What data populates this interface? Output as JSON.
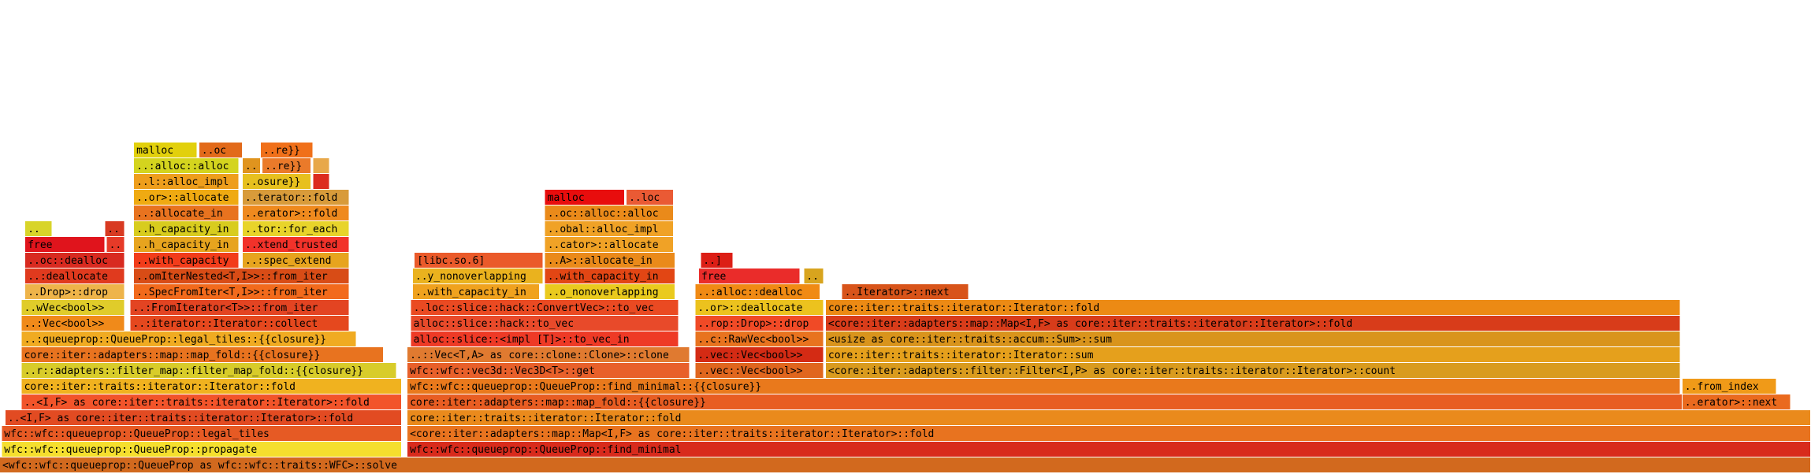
{
  "colors": {
    "background": "#ffffff",
    "text": "#000000"
  },
  "chart_data": {
    "type": "flamegraph",
    "x_unit": "fraction of total samples (0–1)",
    "frames": [
      {
        "label": "<wfc::wfc::queueprop::QueueProp as wfc::wfc::traits::WFC>::solve",
        "depth": 0,
        "start": 0.0,
        "width": 1.0,
        "color": "#d2691e"
      },
      {
        "label": "wfc::wfc::queueprop::QueueProp::propagate",
        "depth": 1,
        "start": 0.001,
        "width": 0.221,
        "color": "#f5df2e"
      },
      {
        "label": "wfc::wfc::queueprop::QueueProp::find_minimal",
        "depth": 1,
        "start": 0.225,
        "width": 0.775,
        "color": "#d82b1c"
      },
      {
        "label": "wfc::wfc::queueprop::QueueProp::legal_tiles",
        "depth": 2,
        "start": 0.001,
        "width": 0.221,
        "color": "#e65a24"
      },
      {
        "label": "<core::iter::adapters::map::Map<I,F> as core::iter::traits::iterator::Iterator>::fold",
        "depth": 2,
        "start": 0.225,
        "width": 0.775,
        "color": "#e8731f"
      },
      {
        "label": "..<I,F> as core::iter::traits::iterator::Iterator>::fold",
        "depth": 3,
        "start": 0.003,
        "width": 0.219,
        "color": "#e24b22"
      },
      {
        "label": "core::iter::traits::iterator::Iterator::fold",
        "depth": 3,
        "start": 0.225,
        "width": 0.775,
        "color": "#ea8a1c"
      },
      {
        "label": "..<I,F> as core::iter::traits::iterator::Iterator>::fold",
        "depth": 4,
        "start": 0.012,
        "width": 0.21,
        "color": "#f2542a"
      },
      {
        "label": "core::iter::adapters::map::map_fold::{{closure}}",
        "depth": 4,
        "start": 0.225,
        "width": 0.704,
        "color": "#e85d22"
      },
      {
        "label": "..erator>::next",
        "depth": 4,
        "start": 0.929,
        "width": 0.06,
        "color": "#ea6a1e"
      },
      {
        "label": "core::iter::traits::iterator::Iterator::fold",
        "depth": 5,
        "start": 0.012,
        "width": 0.21,
        "color": "#f0b21f"
      },
      {
        "label": "wfc::wfc::queueprop::QueueProp::find_minimal::{{closure}}",
        "depth": 5,
        "start": 0.225,
        "width": 0.703,
        "color": "#e9791c"
      },
      {
        "label": "..from_index",
        "depth": 5,
        "start": 0.929,
        "width": 0.052,
        "color": "#f09a18"
      },
      {
        "label": "..r::adapters::filter_map::filter_map_fold::{{closure}}",
        "depth": 6,
        "start": 0.012,
        "width": 0.207,
        "color": "#d8cc2a"
      },
      {
        "label": "wfc::wfc::vec3d::Vec3D<T>::get",
        "depth": 6,
        "start": 0.225,
        "width": 0.156,
        "color": "#e8602a"
      },
      {
        "label": "..vec::Vec<bool>>",
        "depth": 6,
        "start": 0.384,
        "width": 0.071,
        "color": "#e0661e"
      },
      {
        "label": "<core::iter::adapters::filter::Filter<I,P> as core::iter::traits::iterator::Iterator>::count",
        "depth": 6,
        "start": 0.456,
        "width": 0.472,
        "color": "#d99b1e"
      },
      {
        "label": "core::iter::adapters::map::map_fold::{{closure}}",
        "depth": 7,
        "start": 0.012,
        "width": 0.2,
        "color": "#e8731f"
      },
      {
        "label": "..::Vec<T,A> as core::clone::Clone>::clone",
        "depth": 7,
        "start": 0.225,
        "width": 0.156,
        "color": "#e07a30"
      },
      {
        "label": "..vec::Vec<bool>>",
        "depth": 7,
        "start": 0.384,
        "width": 0.071,
        "color": "#d42b14"
      },
      {
        "label": "core::iter::traits::iterator::Iterator::sum",
        "depth": 7,
        "start": 0.456,
        "width": 0.472,
        "color": "#e5a01c"
      },
      {
        "label": "..:queueprop::QueueProp::legal_tiles::{{closure}}",
        "depth": 8,
        "start": 0.012,
        "width": 0.185,
        "color": "#f0ab22"
      },
      {
        "label": "alloc::slice::<impl [T]>::to_vec_in",
        "depth": 8,
        "start": 0.227,
        "width": 0.148,
        "color": "#ee3a26"
      },
      {
        "label": "..c::RawVec<bool>>",
        "depth": 8,
        "start": 0.384,
        "width": 0.071,
        "color": "#e8731f"
      },
      {
        "label": "<usize as core::iter::traits::accum::Sum>::sum",
        "depth": 8,
        "start": 0.456,
        "width": 0.472,
        "color": "#d9941c"
      },
      {
        "label": "..:Vec<bool>>",
        "depth": 9,
        "start": 0.012,
        "width": 0.057,
        "color": "#f08a1a"
      },
      {
        "label": "..:iterator::Iterator::collect",
        "depth": 9,
        "start": 0.072,
        "width": 0.121,
        "color": "#e5481e"
      },
      {
        "label": "alloc::slice::hack::to_vec",
        "depth": 9,
        "start": 0.227,
        "width": 0.148,
        "color": "#e84a2a"
      },
      {
        "label": "..rop::Drop>::drop",
        "depth": 9,
        "start": 0.384,
        "width": 0.071,
        "color": "#f04a26"
      },
      {
        "label": "<core::iter::adapters::map::Map<I,F> as core::iter::traits::iterator::Iterator>::fold",
        "depth": 9,
        "start": 0.456,
        "width": 0.472,
        "color": "#d83c1a"
      },
      {
        "label": "..wVec<bool>>",
        "depth": 10,
        "start": 0.012,
        "width": 0.057,
        "color": "#e0cc2a"
      },
      {
        "label": "..:FromIterator<T>>::from_iter",
        "depth": 10,
        "start": 0.072,
        "width": 0.121,
        "color": "#e34422"
      },
      {
        "label": "..loc::slice::hack::ConvertVec>::to_vec",
        "depth": 10,
        "start": 0.227,
        "width": 0.148,
        "color": "#ea4a22"
      },
      {
        "label": "..or>::deallocate",
        "depth": 10,
        "start": 0.384,
        "width": 0.071,
        "color": "#ecc21e"
      },
      {
        "label": "core::iter::traits::iterator::Iterator::fold",
        "depth": 10,
        "start": 0.456,
        "width": 0.472,
        "color": "#ec8a14"
      },
      {
        "label": "..Drop>::drop",
        "depth": 11,
        "start": 0.014,
        "width": 0.055,
        "color": "#eeb44a"
      },
      {
        "label": "..SpecFromIter<T,I>>::from_iter",
        "depth": 11,
        "start": 0.074,
        "width": 0.119,
        "color": "#f26a1c"
      },
      {
        "label": "..o_nonoverlapping",
        "depth": 11,
        "start": 0.301,
        "width": 0.072,
        "color": "#eaca1e"
      },
      {
        "label": "..with_capacity_in",
        "depth": 11,
        "start": 0.228,
        "width": 0.07,
        "color": "#f0a21e"
      },
      {
        "label": "..:alloc::dealloc",
        "depth": 11,
        "start": 0.384,
        "width": 0.069,
        "color": "#f08a14"
      },
      {
        "label": "..Iterator>::next",
        "depth": 11,
        "start": 0.465,
        "width": 0.07,
        "color": "#d8541a"
      },
      {
        "label": "..:deallocate",
        "depth": 12,
        "start": 0.014,
        "width": 0.055,
        "color": "#e03a1e"
      },
      {
        "label": "..omIterNested<T,I>>::from_iter",
        "depth": 12,
        "start": 0.074,
        "width": 0.119,
        "color": "#d84c16"
      },
      {
        "label": "..y_nonoverlapping",
        "depth": 12,
        "start": 0.228,
        "width": 0.072,
        "color": "#eab21e"
      },
      {
        "label": "..with_capacity_in",
        "depth": 12,
        "start": 0.301,
        "width": 0.072,
        "color": "#e24614"
      },
      {
        "label": "free",
        "depth": 12,
        "start": 0.386,
        "width": 0.056,
        "color": "#ea2c2a"
      },
      {
        "label": "..",
        "depth": 12,
        "start": 0.444,
        "width": 0.011,
        "color": "#d8a41e"
      },
      {
        "label": "..oc::dealloc",
        "depth": 13,
        "start": 0.014,
        "width": 0.055,
        "color": "#d82a20"
      },
      {
        "label": "..with_capacity",
        "depth": 13,
        "start": 0.074,
        "width": 0.058,
        "color": "#f23c1a"
      },
      {
        "label": "..:spec_extend",
        "depth": 13,
        "start": 0.134,
        "width": 0.059,
        "color": "#e7a41e"
      },
      {
        "label": "[libc.so.6]",
        "depth": 13,
        "start": 0.229,
        "width": 0.071,
        "color": "#ea5a2a"
      },
      {
        "label": "..A>::allocate_in",
        "depth": 13,
        "start": 0.301,
        "width": 0.072,
        "color": "#ea8a1a"
      },
      {
        "label": "..]",
        "depth": 13,
        "start": 0.387,
        "width": 0.018,
        "color": "#dc1e16"
      },
      {
        "label": "free",
        "depth": 14,
        "start": 0.014,
        "width": 0.044,
        "color": "#e0141c"
      },
      {
        "label": "..",
        "depth": 14,
        "start": 0.059,
        "width": 0.01,
        "color": "#e63a28"
      },
      {
        "label": "..h_capacity_in",
        "depth": 14,
        "start": 0.074,
        "width": 0.058,
        "color": "#e7a41e"
      },
      {
        "label": "..xtend_trusted",
        "depth": 14,
        "start": 0.134,
        "width": 0.059,
        "color": "#f2322a"
      },
      {
        "label": "..cator>::allocate",
        "depth": 14,
        "start": 0.301,
        "width": 0.071,
        "color": "#f0a226"
      },
      {
        "label": "..",
        "depth": 15,
        "start": 0.014,
        "width": 0.015,
        "color": "#d8d42a"
      },
      {
        "label": "..",
        "depth": 15,
        "start": 0.058,
        "width": 0.011,
        "color": "#d83a22"
      },
      {
        "label": "..h_capacity_in",
        "depth": 15,
        "start": 0.074,
        "width": 0.058,
        "color": "#d8cc1e"
      },
      {
        "label": "..tor::for_each",
        "depth": 15,
        "start": 0.134,
        "width": 0.059,
        "color": "#e8d42a"
      },
      {
        "label": "..obal::alloc_impl",
        "depth": 15,
        "start": 0.301,
        "width": 0.071,
        "color": "#f0a226"
      },
      {
        "label": "..:allocate_in",
        "depth": 16,
        "start": 0.074,
        "width": 0.058,
        "color": "#e8731f"
      },
      {
        "label": "..erator>::fold",
        "depth": 16,
        "start": 0.134,
        "width": 0.059,
        "color": "#ef8a1e"
      },
      {
        "label": "..oc::alloc::alloc",
        "depth": 16,
        "start": 0.301,
        "width": 0.071,
        "color": "#ea8a1a"
      },
      {
        "label": "..or>::allocate",
        "depth": 17,
        "start": 0.074,
        "width": 0.058,
        "color": "#efaa12"
      },
      {
        "label": "..terator::fold",
        "depth": 17,
        "start": 0.134,
        "width": 0.059,
        "color": "#d89b3a"
      },
      {
        "label": "malloc",
        "depth": 17,
        "start": 0.301,
        "width": 0.044,
        "color": "#e80d0d"
      },
      {
        "label": "..loc",
        "depth": 17,
        "start": 0.346,
        "width": 0.026,
        "color": "#ea5a34"
      },
      {
        "label": "..l::alloc_impl",
        "depth": 18,
        "start": 0.074,
        "width": 0.058,
        "color": "#ee9e1c"
      },
      {
        "label": "..osure}}",
        "depth": 18,
        "start": 0.134,
        "width": 0.038,
        "color": "#e7c01e"
      },
      {
        "label": "..",
        "depth": 18,
        "start": 0.173,
        "width": 0.009,
        "color": "#dc2c1e"
      },
      {
        "label": "..:alloc::alloc",
        "depth": 19,
        "start": 0.074,
        "width": 0.058,
        "color": "#d4d41e"
      },
      {
        "label": "..",
        "depth": 19,
        "start": 0.134,
        "width": 0.01,
        "color": "#e0941e"
      },
      {
        "label": "..re}}",
        "depth": 19,
        "start": 0.145,
        "width": 0.027,
        "color": "#ea7a2a"
      },
      {
        "label": "..",
        "depth": 19,
        "start": 0.173,
        "width": 0.009,
        "color": "#e8a84a"
      },
      {
        "label": "malloc",
        "depth": 20,
        "start": 0.074,
        "width": 0.035,
        "color": "#e2d00c"
      },
      {
        "label": "..oc",
        "depth": 20,
        "start": 0.11,
        "width": 0.024,
        "color": "#e26a1a"
      },
      {
        "label": "..re}}",
        "depth": 20,
        "start": 0.144,
        "width": 0.029,
        "color": "#f0701a"
      }
    ]
  }
}
